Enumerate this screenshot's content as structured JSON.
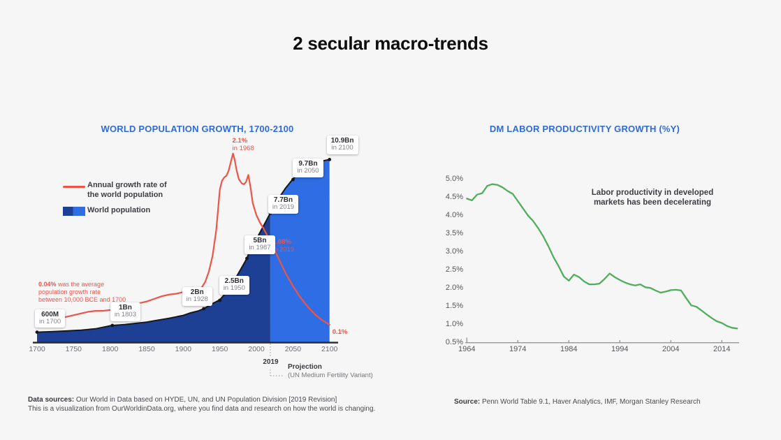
{
  "page": {
    "title": "2 secular macro-trends",
    "background": "#f6f6f7"
  },
  "colors": {
    "accent_blue_title": "#2e6bd9",
    "population_historical": "#1e4094",
    "population_projection": "#2e6de4",
    "population_outline": "#17171b",
    "growth_line_red": "#ee5547",
    "productivity_green": "#4fae5c",
    "axis_dark": "#2a2a2e",
    "axis_light": "#97979b",
    "dotted_gray": "#ababaf"
  },
  "left_panel": {
    "title": "WORLD POPULATION GROWTH, 1700-2100",
    "legend": {
      "growth_label_line1": "Annual growth rate of",
      "growth_label_line2": "the world population",
      "population_label": "World population"
    },
    "growth_note": {
      "bold": "0.04%",
      "line1": " was the average",
      "line2": "population growth rate",
      "line3": "between 10,000 BCE and 1700"
    },
    "projection_marker": {
      "year": "2019",
      "label": "Projection",
      "sub": "(UN Medium Fertility Variant)"
    },
    "footer": {
      "bold": "Data sources:",
      "text": " Our World in Data based on HYDE, UN, and UN Population Division [2019 Revision]",
      "line2": "This is a visualization from OurWorldinData.org, where you find data and research on how the world is changing."
    }
  },
  "right_panel": {
    "title": "DM LABOR PRODUCTIVITY GROWTH (%Y)",
    "annotation_line1": "Labor productivity in developed",
    "annotation_line2": "markets has been decelerating",
    "footer": {
      "bold": "Source:",
      "text": " Penn World Table 9.1, Haver Analytics, IMF, Morgan Stanley Research"
    }
  },
  "chart_data": [
    {
      "type": "area",
      "title": "WORLD POPULATION GROWTH, 1700-2100",
      "xlim": [
        1700,
        2100
      ],
      "x_ticks": [
        1700,
        1750,
        1800,
        1850,
        1900,
        1950,
        2000,
        2050,
        2100
      ],
      "projection_from": 2019,
      "grid": false,
      "series": [
        {
          "name": "World population",
          "type": "area",
          "unit": "billion people",
          "points": [
            [
              1700,
              0.6
            ],
            [
              1720,
              0.63
            ],
            [
              1740,
              0.67
            ],
            [
              1750,
              0.7
            ],
            [
              1760,
              0.72
            ],
            [
              1780,
              0.8
            ],
            [
              1800,
              0.98
            ],
            [
              1803,
              1.0
            ],
            [
              1820,
              1.05
            ],
            [
              1840,
              1.15
            ],
            [
              1850,
              1.2
            ],
            [
              1860,
              1.28
            ],
            [
              1880,
              1.42
            ],
            [
              1900,
              1.6
            ],
            [
              1910,
              1.75
            ],
            [
              1920,
              1.86
            ],
            [
              1928,
              2.0
            ],
            [
              1940,
              2.3
            ],
            [
              1950,
              2.53
            ],
            [
              1960,
              3.03
            ],
            [
              1970,
              3.7
            ],
            [
              1980,
              4.46
            ],
            [
              1987,
              5.0
            ],
            [
              1990,
              5.33
            ],
            [
              2000,
              6.14
            ],
            [
              2010,
              6.96
            ],
            [
              2019,
              7.7
            ],
            [
              2030,
              8.55
            ],
            [
              2040,
              9.2
            ],
            [
              2050,
              9.74
            ],
            [
              2060,
              10.15
            ],
            [
              2070,
              10.46
            ],
            [
              2080,
              10.67
            ],
            [
              2090,
              10.81
            ],
            [
              2100,
              10.9
            ]
          ]
        },
        {
          "name": "Annual growth rate of the world population",
          "type": "line",
          "unit": "percent",
          "points": [
            [
              1700,
              0.13
            ],
            [
              1710,
              0.15
            ],
            [
              1720,
              0.17
            ],
            [
              1730,
              0.18
            ],
            [
              1740,
              0.19
            ],
            [
              1750,
              0.21
            ],
            [
              1760,
              0.23
            ],
            [
              1770,
              0.25
            ],
            [
              1780,
              0.26
            ],
            [
              1790,
              0.26
            ],
            [
              1800,
              0.27
            ],
            [
              1810,
              0.29
            ],
            [
              1820,
              0.31
            ],
            [
              1830,
              0.33
            ],
            [
              1840,
              0.35
            ],
            [
              1850,
              0.37
            ],
            [
              1860,
              0.4
            ],
            [
              1870,
              0.43
            ],
            [
              1880,
              0.45
            ],
            [
              1890,
              0.46
            ],
            [
              1900,
              0.48
            ],
            [
              1910,
              0.5
            ],
            [
              1920,
              0.51
            ],
            [
              1925,
              0.53
            ],
            [
              1930,
              0.6
            ],
            [
              1935,
              0.72
            ],
            [
              1940,
              0.9
            ],
            [
              1945,
              1.2
            ],
            [
              1950,
              1.68
            ],
            [
              1953,
              1.78
            ],
            [
              1956,
              1.82
            ],
            [
              1959,
              1.84
            ],
            [
              1962,
              1.9
            ],
            [
              1965,
              2.0
            ],
            [
              1968,
              2.1
            ],
            [
              1970,
              2.04
            ],
            [
              1973,
              1.9
            ],
            [
              1976,
              1.8
            ],
            [
              1980,
              1.75
            ],
            [
              1983,
              1.74
            ],
            [
              1986,
              1.77
            ],
            [
              1989,
              1.85
            ],
            [
              1992,
              1.7
            ],
            [
              1995,
              1.52
            ],
            [
              2000,
              1.38
            ],
            [
              2005,
              1.29
            ],
            [
              2010,
              1.22
            ],
            [
              2015,
              1.14
            ],
            [
              2019,
              1.08
            ],
            [
              2025,
              0.97
            ],
            [
              2030,
              0.88
            ],
            [
              2040,
              0.7
            ],
            [
              2050,
              0.55
            ],
            [
              2060,
              0.42
            ],
            [
              2070,
              0.31
            ],
            [
              2080,
              0.22
            ],
            [
              2090,
              0.15
            ],
            [
              2100,
              0.1
            ]
          ]
        }
      ],
      "point_labels": [
        {
          "text": "600M",
          "sub": "in 1700",
          "year": 1700,
          "value": 0.6
        },
        {
          "text": "1Bn",
          "sub": "in 1803",
          "year": 1803,
          "value": 1.0
        },
        {
          "text": "2Bn",
          "sub": "in 1928",
          "year": 1928,
          "value": 2.0
        },
        {
          "text": "2.5Bn",
          "sub": "in 1950",
          "year": 1950,
          "value": 2.5
        },
        {
          "text": "5Bn",
          "sub": "in 1987",
          "year": 1987,
          "value": 5.0
        },
        {
          "text": "7.7Bn",
          "sub": "in 2019",
          "year": 2019,
          "value": 7.7
        },
        {
          "text": "9.7Bn",
          "sub": "in 2050",
          "year": 2050,
          "value": 9.7
        },
        {
          "text": "10.9Bn",
          "sub": "in 2100",
          "year": 2100,
          "value": 10.9
        }
      ],
      "rate_labels": [
        {
          "text": "2.1%",
          "sub": "in 1968",
          "year": 1968,
          "value": 2.1
        },
        {
          "text": "1.08%",
          "sub": "in 2019",
          "year": 2019,
          "value": 1.08
        },
        {
          "text": "0.1%",
          "sub": "",
          "year": 2100,
          "value": 0.1
        }
      ]
    },
    {
      "type": "line",
      "title": "DM LABOR PRODUCTIVITY GROWTH (%Y)",
      "x_start": 1964,
      "x_ticks": [
        1964,
        1974,
        1984,
        1994,
        2004,
        2014
      ],
      "ylim": [
        0.5,
        5.0
      ],
      "y_ticks": [
        5.0,
        4.5,
        4.0,
        3.5,
        3.0,
        2.5,
        2.0,
        1.5,
        1.0,
        0.5
      ],
      "y_tick_suffix": "%",
      "grid": false,
      "annotation": "Labor productivity in developed markets has been decelerating",
      "series": [
        {
          "name": "DM labor productivity growth (%Y)",
          "values": [
            4.47,
            4.42,
            4.58,
            4.62,
            4.82,
            4.87,
            4.85,
            4.78,
            4.68,
            4.6,
            4.4,
            4.2,
            4.0,
            3.85,
            3.65,
            3.42,
            3.15,
            2.85,
            2.6,
            2.32,
            2.2,
            2.37,
            2.3,
            2.18,
            2.1,
            2.1,
            2.12,
            2.25,
            2.4,
            2.3,
            2.22,
            2.15,
            2.1,
            2.07,
            2.1,
            2.02,
            2.0,
            1.93,
            1.87,
            1.9,
            1.94,
            1.95,
            1.93,
            1.72,
            1.52,
            1.48,
            1.38,
            1.27,
            1.17,
            1.08,
            1.03,
            0.95,
            0.9,
            0.88
          ]
        }
      ]
    }
  ]
}
